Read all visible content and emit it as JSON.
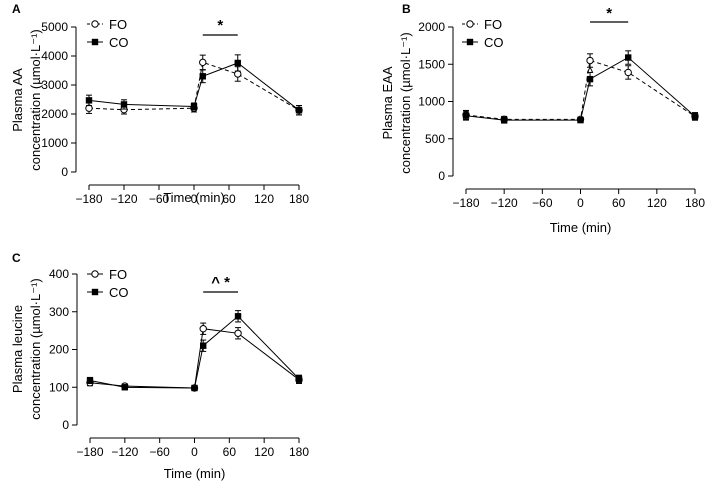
{
  "chart_data": [
    {
      "panel": "A",
      "type": "line",
      "ylabel_lines": [
        "Plasma AA",
        "concentration (µmol·L⁻¹)"
      ],
      "xlabel": "Time (min)",
      "x_ticks": [
        -180,
        -120,
        -60,
        0,
        60,
        120,
        180
      ],
      "y_ticks": [
        0,
        1000,
        2000,
        3000,
        4000,
        5000
      ],
      "ylim": [
        0,
        5000
      ],
      "xlim": [
        -180,
        180
      ],
      "series": [
        {
          "name": "FO",
          "style": "dashed",
          "marker": "open-circle",
          "x": [
            -180,
            -120,
            0,
            15,
            75,
            180
          ],
          "y": [
            2200,
            2150,
            2200,
            3780,
            3380,
            2130
          ],
          "err": [
            180,
            150,
            130,
            250,
            250,
            160
          ]
        },
        {
          "name": "CO",
          "style": "solid",
          "marker": "filled-square",
          "x": [
            -180,
            -120,
            0,
            15,
            75,
            180
          ],
          "y": [
            2470,
            2330,
            2260,
            3300,
            3760,
            2130
          ],
          "err": [
            180,
            160,
            120,
            220,
            280,
            160
          ]
        }
      ],
      "annotations": [
        {
          "text": "*",
          "bar_x": [
            15,
            75
          ]
        }
      ]
    },
    {
      "panel": "B",
      "type": "line",
      "ylabel_lines": [
        "Plasma EAA",
        "concentration (µmol·L⁻¹)"
      ],
      "xlabel": "Time (min)",
      "x_ticks": [
        -180,
        -120,
        -60,
        0,
        60,
        120,
        180
      ],
      "y_ticks": [
        0,
        500,
        1000,
        1500,
        2000
      ],
      "ylim": [
        0,
        2000
      ],
      "xlim": [
        -180,
        180
      ],
      "series": [
        {
          "name": "FO",
          "style": "dashed",
          "marker": "open-circle",
          "x": [
            -180,
            -120,
            0,
            15,
            75,
            180
          ],
          "y": [
            820,
            760,
            760,
            1550,
            1390,
            800
          ],
          "err": [
            60,
            40,
            30,
            90,
            90,
            50
          ]
        },
        {
          "name": "CO",
          "style": "solid",
          "marker": "filled-square",
          "x": [
            -180,
            -120,
            0,
            15,
            75,
            180
          ],
          "y": [
            810,
            750,
            750,
            1300,
            1590,
            800
          ],
          "err": [
            60,
            40,
            30,
            90,
            90,
            50
          ]
        }
      ],
      "annotations": [
        {
          "text": "*",
          "bar_x": [
            15,
            75
          ]
        },
        {
          "text": "^",
          "at_x": 15
        }
      ]
    },
    {
      "panel": "C",
      "type": "line",
      "ylabel_lines": [
        "Plasma leucine",
        "concentration (µmol·L⁻¹)"
      ],
      "xlabel": "Time (min)",
      "x_ticks": [
        -180,
        -120,
        -60,
        0,
        60,
        120,
        180
      ],
      "y_ticks": [
        0,
        100,
        200,
        300,
        400
      ],
      "ylim": [
        0,
        400
      ],
      "xlim": [
        -180,
        180
      ],
      "series": [
        {
          "name": "FO",
          "style": "solid",
          "marker": "open-circle",
          "x": [
            -180,
            -120,
            0,
            15,
            75,
            180
          ],
          "y": [
            112,
            103,
            98,
            255,
            243,
            120
          ],
          "err": [
            8,
            6,
            5,
            15,
            15,
            10
          ]
        },
        {
          "name": "CO",
          "style": "solid",
          "marker": "filled-square",
          "x": [
            -180,
            -120,
            0,
            15,
            75,
            180
          ],
          "y": [
            118,
            100,
            98,
            210,
            288,
            122
          ],
          "err": [
            8,
            6,
            5,
            15,
            15,
            10
          ]
        }
      ],
      "annotations": [
        {
          "text": "^ *",
          "bar_x": [
            15,
            75
          ]
        }
      ]
    }
  ]
}
